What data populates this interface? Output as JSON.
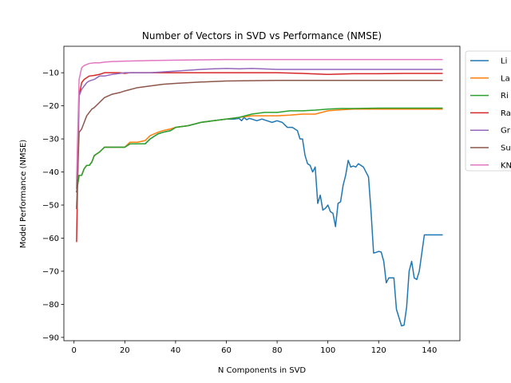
{
  "chart_data": {
    "type": "line",
    "title": "Number of Vectors in SVD vs Performance (NMSE)",
    "xlabel": "N Components in SVD",
    "ylabel": "Model Performance (NMSE)",
    "xlim": [
      -4,
      152
    ],
    "ylim": [
      -91,
      -2
    ],
    "xticks": [
      0,
      20,
      40,
      60,
      80,
      100,
      120,
      140
    ],
    "yticks": [
      -90,
      -80,
      -70,
      -60,
      -50,
      -40,
      -30,
      -20,
      -10
    ],
    "ytick_labels": [
      "−90",
      "−80",
      "−70",
      "−60",
      "−50",
      "−40",
      "−30",
      "−20",
      "−10"
    ],
    "legend_position": "right-outside-top",
    "series": [
      {
        "name": "Li",
        "color": "#1f77b4",
        "x": [
          1,
          2,
          3,
          4,
          5,
          6,
          7,
          8,
          10,
          12,
          15,
          18,
          20,
          22,
          25,
          28,
          30,
          33,
          35,
          38,
          40,
          45,
          50,
          55,
          60,
          63,
          65,
          66,
          67,
          68,
          69,
          70,
          72,
          74,
          76,
          78,
          80,
          82,
          84,
          86,
          88,
          89,
          90,
          91,
          92,
          93,
          94,
          95,
          96,
          97,
          98,
          99,
          100,
          101,
          102,
          103,
          104,
          105,
          106,
          107,
          108,
          109,
          110,
          111,
          112,
          113,
          114,
          115,
          116,
          117,
          118,
          119,
          120,
          121,
          122,
          123,
          124,
          125,
          126,
          127,
          128,
          129,
          130,
          131,
          132,
          133,
          134,
          135,
          136,
          137,
          138,
          139,
          140,
          141,
          142,
          143,
          144,
          145
        ],
        "y": [
          -46,
          -41,
          -41,
          -39,
          -38,
          -38,
          -37,
          -35,
          -34,
          -32.5,
          -32.5,
          -32.5,
          -32.5,
          -31.5,
          -31.5,
          -31.5,
          -30,
          -28.5,
          -28,
          -27.5,
          -26.5,
          -26,
          -25,
          -24.5,
          -24,
          -24,
          -23.8,
          -24.5,
          -23.5,
          -24.2,
          -23.8,
          -24,
          -24.5,
          -24,
          -24.5,
          -25,
          -24.5,
          -25,
          -26.5,
          -26.5,
          -27.5,
          -30,
          -30,
          -35,
          -37.5,
          -38,
          -40,
          -38.5,
          -49.5,
          -47,
          -51.5,
          -51,
          -50,
          -52,
          -52.5,
          -56.5,
          -49.5,
          -49,
          -44,
          -41,
          -36.5,
          -38.5,
          -38.2,
          -38.5,
          -37.5,
          -38,
          -38.5,
          -40,
          -41.5,
          -52,
          -64.5,
          -64.3,
          -64,
          -64.2,
          -67,
          -73.5,
          -72,
          -72,
          -72,
          -81.5,
          -84,
          -86.5,
          -86.3,
          -81,
          -70,
          -67,
          -72,
          -72.5,
          -70,
          -64.5,
          -59,
          -59,
          -59,
          -59,
          -59,
          -59,
          -59,
          -59
        ]
      },
      {
        "name": "La",
        "color": "#ff7f0e",
        "x": [
          1,
          2,
          3,
          4,
          5,
          6,
          7,
          8,
          10,
          12,
          15,
          18,
          20,
          22,
          25,
          28,
          30,
          33,
          35,
          38,
          40,
          45,
          50,
          55,
          60,
          65,
          70,
          75,
          80,
          85,
          90,
          95,
          100,
          105,
          110,
          120,
          130,
          140,
          145
        ],
        "y": [
          -46,
          -41,
          -41,
          -39,
          -38,
          -38,
          -37,
          -35,
          -34,
          -32.5,
          -32.5,
          -32.5,
          -32.5,
          -31,
          -31,
          -30.5,
          -29,
          -28,
          -27.5,
          -27,
          -26.5,
          -26,
          -25,
          -24.5,
          -24,
          -23.5,
          -23,
          -23,
          -23,
          -22.8,
          -22.5,
          -22.5,
          -21.5,
          -21.2,
          -21,
          -21,
          -21,
          -21,
          -21
        ]
      },
      {
        "name": "Ri",
        "color": "#2ca02c",
        "x": [
          1,
          2,
          3,
          4,
          5,
          6,
          7,
          8,
          10,
          12,
          15,
          18,
          20,
          22,
          25,
          28,
          30,
          33,
          35,
          38,
          40,
          45,
          50,
          55,
          60,
          65,
          70,
          75,
          80,
          85,
          90,
          95,
          100,
          105,
          110,
          120,
          130,
          140,
          145
        ],
        "y": [
          -46,
          -41,
          -41,
          -39,
          -38,
          -38,
          -37,
          -35,
          -34,
          -32.5,
          -32.5,
          -32.5,
          -32.5,
          -31.5,
          -31.5,
          -31.5,
          -30,
          -28.5,
          -28,
          -27.5,
          -26.5,
          -26,
          -25,
          -24.5,
          -24,
          -23.5,
          -22.5,
          -22,
          -22,
          -21.5,
          -21.5,
          -21.3,
          -21,
          -20.8,
          -20.8,
          -20.7,
          -20.7,
          -20.7,
          -20.7
        ]
      },
      {
        "name": "Ra",
        "color": "#d62728",
        "x": [
          1,
          2,
          3,
          4,
          5,
          6,
          8,
          10,
          12,
          15,
          18,
          20,
          22,
          25,
          30,
          40,
          50,
          60,
          70,
          80,
          90,
          100,
          110,
          120,
          130,
          140,
          145
        ],
        "y": [
          -61,
          -17,
          -13,
          -12,
          -11.5,
          -11,
          -10.8,
          -10.5,
          -10,
          -10,
          -10,
          -10.2,
          -10,
          -10,
          -10,
          -10,
          -10,
          -10,
          -10,
          -10,
          -10.2,
          -10.5,
          -10.3,
          -10.3,
          -10.2,
          -10.2,
          -10.2
        ]
      },
      {
        "name": "Gr",
        "color": "#9467bd",
        "x": [
          1,
          2,
          3,
          4,
          5,
          6,
          8,
          10,
          12,
          15,
          18,
          20,
          25,
          30,
          40,
          50,
          55,
          60,
          65,
          70,
          80,
          90,
          100,
          110,
          120,
          130,
          140,
          145
        ],
        "y": [
          -45,
          -17,
          -15,
          -14,
          -13,
          -12.5,
          -12,
          -11,
          -11,
          -10.5,
          -10.2,
          -10,
          -10,
          -10,
          -9.5,
          -9,
          -8.8,
          -8.7,
          -8.8,
          -8.7,
          -9,
          -9,
          -9,
          -9,
          -9,
          -9,
          -9,
          -9
        ]
      },
      {
        "name": "Su",
        "color": "#8c564b",
        "x": [
          1,
          2,
          3,
          4,
          5,
          6,
          7,
          8,
          10,
          12,
          15,
          18,
          20,
          25,
          30,
          35,
          40,
          50,
          60,
          70,
          80,
          90,
          100,
          120,
          140,
          145
        ],
        "y": [
          -51,
          -28,
          -27,
          -25,
          -23,
          -22,
          -21,
          -20.5,
          -19,
          -17.5,
          -16.5,
          -16,
          -15.5,
          -14.5,
          -14,
          -13.5,
          -13.2,
          -12.8,
          -12.5,
          -12.4,
          -12.3,
          -12.3,
          -12.3,
          -12.3,
          -12.3,
          -12.3
        ]
      },
      {
        "name": "KN",
        "color": "#e377c2",
        "x": [
          1,
          2,
          3,
          4,
          5,
          6,
          8,
          10,
          12,
          15,
          20,
          25,
          30,
          40,
          50,
          60,
          70,
          80,
          90,
          100,
          110,
          120,
          130,
          140,
          145
        ],
        "y": [
          -42,
          -12,
          -8.5,
          -7.8,
          -7.5,
          -7.2,
          -7,
          -7,
          -6.8,
          -6.6,
          -6.5,
          -6.4,
          -6.3,
          -6.2,
          -6.1,
          -6,
          -6,
          -6,
          -6,
          -6,
          -6,
          -6,
          -6,
          -6,
          -6
        ]
      }
    ]
  }
}
